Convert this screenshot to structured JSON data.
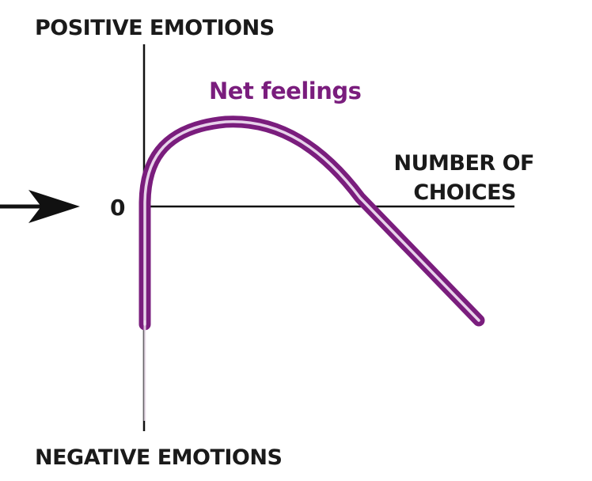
{
  "labels": {
    "y_positive": "POSITIVE EMOTIONS",
    "y_negative": "NEGATIVE EMOTIONS",
    "x_axis_line1": "NUMBER OF",
    "x_axis_line2": "CHOICES",
    "origin": "0",
    "curve": "Net feelings"
  },
  "colors": {
    "curve": "#7a1d7d",
    "curve_highlight": "#e7d2ea",
    "axis": "#111111",
    "text": "#1a1a1a"
  },
  "icons": {
    "pointer": "arrow-right-icon"
  }
}
